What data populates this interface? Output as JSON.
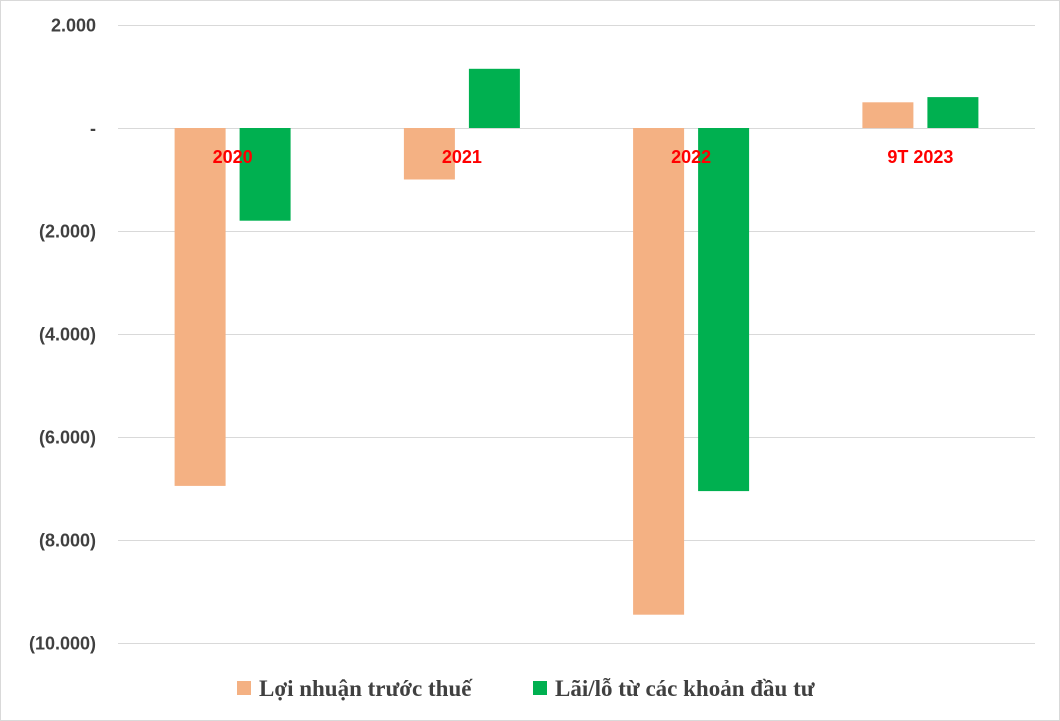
{
  "chart_data": {
    "type": "bar",
    "categories": [
      "2020",
      "2021",
      "2022",
      "9T 2023"
    ],
    "series": [
      {
        "name": "Lợi nhuận trước thuế",
        "color": "#F4B183",
        "values": [
          -6950,
          -1000,
          -9450,
          500
        ]
      },
      {
        "name": "Lãi/lỗ từ các khoản đầu tư",
        "color": "#00B050",
        "values": [
          -1800,
          1150,
          -7050,
          600
        ]
      }
    ],
    "ylim": [
      -10000,
      2000
    ],
    "yticks": [
      2000,
      0,
      -2000,
      -4000,
      -6000,
      -8000,
      -10000
    ],
    "ytick_labels": [
      "2.000",
      "-",
      "(2.000)",
      "(4.000)",
      "(6.000)",
      "(8.000)",
      "(10.000)"
    ],
    "category_label_color": "#FF0000",
    "grid": true,
    "legend_position": "bottom"
  }
}
